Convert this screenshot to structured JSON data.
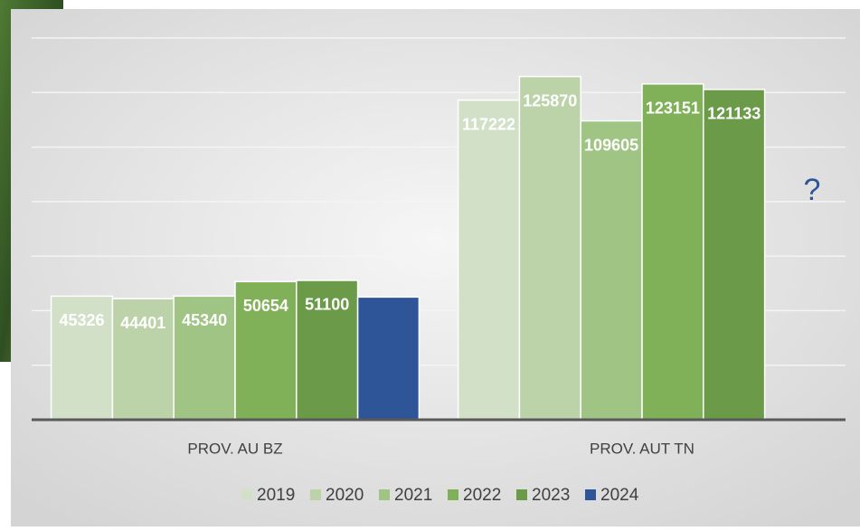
{
  "chart_data": {
    "type": "bar",
    "categories": [
      "PROV. AU BZ",
      "PROV. AUT TN"
    ],
    "series": [
      {
        "name": "2019",
        "color": "#d3e0c8",
        "values": [
          45326,
          117222
        ]
      },
      {
        "name": "2020",
        "color": "#bcd3aa",
        "values": [
          44401,
          125870
        ]
      },
      {
        "name": "2021",
        "color": "#9fc483",
        "values": [
          45340,
          109605
        ]
      },
      {
        "name": "2022",
        "color": "#80b158",
        "values": [
          50654,
          123151
        ]
      },
      {
        "name": "2023",
        "color": "#6b9b48",
        "values": [
          51100,
          121133
        ]
      },
      {
        "name": "2024",
        "color": "#2e5597",
        "values": [
          45000,
          null
        ],
        "value_labels": [
          null,
          null
        ]
      }
    ],
    "ylim": [
      0,
      140000
    ],
    "yticks": [
      0,
      20000,
      40000,
      60000,
      80000,
      100000,
      120000,
      140000
    ],
    "grid": true,
    "legend": "bottom",
    "annotations": [
      "?"
    ]
  }
}
